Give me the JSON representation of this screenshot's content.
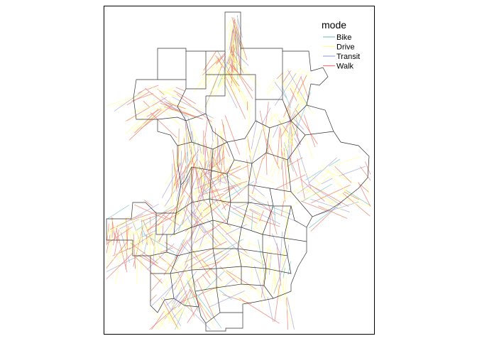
{
  "map": {
    "legend": {
      "title": "mode",
      "items": [
        {
          "label": "Bike",
          "color": "#7fc8c8"
        },
        {
          "label": "Drive",
          "color": "#ffff99"
        },
        {
          "label": "Transit",
          "color": "#a9a9dd"
        },
        {
          "label": "Walk",
          "color": "#f08070"
        }
      ]
    }
  }
}
